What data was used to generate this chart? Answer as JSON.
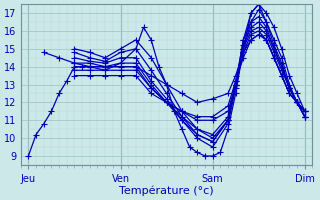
{
  "bg_color": "#cce8e8",
  "grid_major_color": "#a0c8c8",
  "grid_minor_color": "#b8d8d8",
  "line_color": "#0000bb",
  "marker": "+",
  "markersize": 4,
  "linewidth": 0.9,
  "title": "Température (°c)",
  "ylabel_ticks": [
    9,
    10,
    11,
    12,
    13,
    14,
    15,
    16,
    17
  ],
  "day_labels": [
    "Jeu",
    "Ven",
    "Sam",
    "Dim"
  ],
  "day_positions": [
    0,
    96,
    192,
    288
  ],
  "xlim": [
    -8,
    296
  ],
  "ylim": [
    8.5,
    17.5
  ],
  "series": [
    [
      0,
      9.0,
      8,
      10.2,
      16,
      10.8,
      24,
      11.5,
      32,
      12.5,
      40,
      13.2,
      48,
      14.0,
      56,
      14.0,
      64,
      14.0,
      80,
      13.8,
      96,
      14.2,
      112,
      15.0,
      120,
      16.2,
      128,
      15.5,
      136,
      14.0,
      144,
      13.0,
      152,
      11.5,
      160,
      10.5,
      168,
      9.5,
      176,
      9.2,
      184,
      9.0,
      192,
      9.0,
      200,
      9.2,
      208,
      10.5,
      216,
      12.5,
      224,
      15.0,
      232,
      17.0,
      240,
      17.5,
      248,
      17.0,
      256,
      16.2,
      264,
      15.0,
      272,
      13.5,
      280,
      12.5,
      288,
      11.5
    ],
    [
      48,
      15.0,
      64,
      14.8,
      80,
      14.5,
      96,
      15.0,
      112,
      15.5,
      128,
      14.5,
      144,
      13.0,
      160,
      11.5,
      176,
      10.5,
      192,
      10.0,
      208,
      11.0,
      216,
      13.0,
      224,
      15.5,
      232,
      17.0,
      240,
      17.5,
      248,
      16.5,
      256,
      15.5,
      264,
      14.5,
      272,
      13.0,
      280,
      12.0,
      288,
      11.2
    ],
    [
      48,
      14.8,
      64,
      14.5,
      80,
      14.3,
      96,
      14.8,
      112,
      15.0,
      128,
      13.8,
      144,
      12.5,
      160,
      11.2,
      176,
      10.2,
      192,
      9.8,
      208,
      11.0,
      216,
      13.0,
      224,
      15.5,
      232,
      16.5,
      240,
      17.2,
      248,
      16.5,
      256,
      15.2,
      264,
      14.2,
      272,
      12.8,
      280,
      12.0,
      288,
      11.2
    ],
    [
      48,
      14.5,
      64,
      14.3,
      80,
      14.2,
      96,
      14.5,
      112,
      14.5,
      128,
      13.2,
      144,
      12.2,
      160,
      11.0,
      176,
      10.0,
      192,
      9.5,
      208,
      10.8,
      216,
      12.8,
      224,
      15.0,
      232,
      16.5,
      240,
      16.8,
      248,
      16.2,
      256,
      15.0,
      264,
      14.0,
      272,
      12.8,
      280,
      12.0,
      288,
      11.2
    ],
    [
      48,
      14.2,
      64,
      14.2,
      80,
      14.0,
      96,
      14.2,
      112,
      14.2,
      128,
      13.0,
      144,
      12.0,
      160,
      11.0,
      176,
      10.2,
      192,
      9.8,
      208,
      11.0,
      216,
      13.0,
      224,
      15.2,
      232,
      16.2,
      240,
      16.5,
      248,
      16.0,
      256,
      15.0,
      264,
      14.0,
      272,
      12.8,
      280,
      12.0,
      288,
      11.2
    ],
    [
      48,
      14.0,
      64,
      14.0,
      80,
      14.0,
      96,
      14.0,
      112,
      14.0,
      128,
      12.8,
      144,
      12.0,
      160,
      11.2,
      176,
      10.5,
      192,
      10.2,
      208,
      11.2,
      216,
      13.2,
      224,
      15.0,
      232,
      16.0,
      240,
      16.2,
      248,
      15.8,
      256,
      14.8,
      264,
      13.8,
      272,
      12.8,
      280,
      12.0,
      288,
      11.5
    ],
    [
      48,
      13.8,
      64,
      13.8,
      80,
      13.8,
      96,
      13.8,
      112,
      13.8,
      128,
      12.8,
      144,
      12.0,
      160,
      11.5,
      176,
      11.0,
      192,
      11.0,
      208,
      11.5,
      216,
      13.0,
      224,
      14.8,
      232,
      15.8,
      240,
      16.0,
      248,
      15.5,
      256,
      14.5,
      264,
      13.5,
      272,
      12.5,
      280,
      12.0,
      288,
      11.5
    ],
    [
      48,
      13.5,
      64,
      13.5,
      80,
      13.5,
      96,
      13.5,
      112,
      13.5,
      128,
      12.5,
      144,
      12.0,
      160,
      11.5,
      176,
      11.2,
      192,
      11.2,
      208,
      11.8,
      216,
      13.2,
      224,
      14.5,
      232,
      15.5,
      240,
      15.8,
      248,
      15.5,
      256,
      14.5,
      264,
      13.5,
      272,
      12.5,
      280,
      12.0,
      288,
      11.5
    ],
    [
      16,
      14.8,
      32,
      14.5,
      48,
      14.2,
      64,
      14.0,
      80,
      14.0,
      96,
      14.0,
      112,
      14.0,
      128,
      13.5,
      144,
      13.0,
      160,
      12.5,
      176,
      12.0,
      192,
      12.2,
      208,
      12.5,
      216,
      13.5,
      224,
      14.8,
      232,
      15.5,
      240,
      15.8,
      248,
      15.5,
      256,
      14.5,
      264,
      13.5,
      272,
      12.5,
      280,
      12.0,
      288,
      11.5
    ]
  ]
}
